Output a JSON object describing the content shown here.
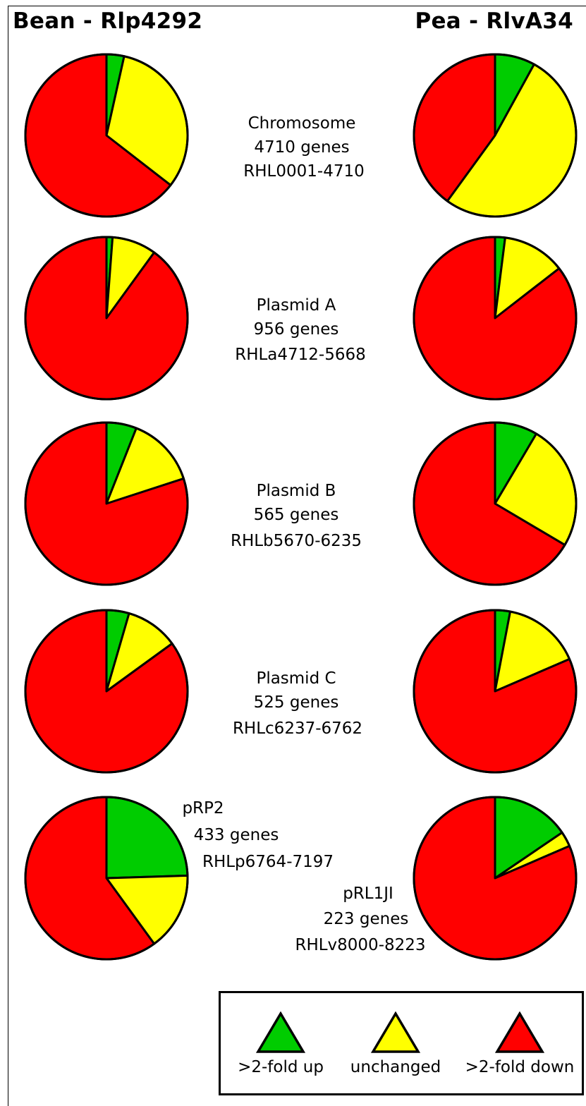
{
  "chart_data": {
    "type": "pie",
    "colors": {
      "up": "#00cc00",
      "unchanged": "#ffff00",
      "down": "#ff0000",
      "outline": "#000000"
    },
    "columns": [
      {
        "title": "Bean - Rlp4292"
      },
      {
        "title": "Pea - RlvA34"
      }
    ],
    "rows": [
      {
        "label": [
          "Chromosome",
          "4710 genes",
          "RHL0001-4710"
        ],
        "bean": {
          "up": 3.5,
          "unchanged": 32.0,
          "down": 64.5
        },
        "pea": {
          "up": 8.0,
          "unchanged": 52.0,
          "down": 40.0
        }
      },
      {
        "label": [
          "Plasmid A",
          "956 genes",
          "RHLa4712-5668"
        ],
        "bean": {
          "up": 1.2,
          "unchanged": 8.8,
          "down": 90.0
        },
        "pea": {
          "up": 2.0,
          "unchanged": 12.5,
          "down": 85.5
        }
      },
      {
        "label": [
          "Plasmid B",
          "565 genes",
          "RHLb5670-6235"
        ],
        "bean": {
          "up": 6.0,
          "unchanged": 14.0,
          "down": 80.0
        },
        "pea": {
          "up": 8.5,
          "unchanged": 25.0,
          "down": 66.5
        }
      },
      {
        "label": [
          "Plasmid C",
          "525 genes",
          "RHLc6237-6762"
        ],
        "bean": {
          "up": 4.5,
          "unchanged": 10.5,
          "down": 85.0
        },
        "pea": {
          "up": 3.0,
          "unchanged": 15.5,
          "down": 81.5
        }
      },
      {
        "label": [
          "pRP2",
          "433 genes",
          "RHLp6764-7197"
        ],
        "bean": {
          "up": 24.5,
          "unchanged": 15.5,
          "down": 60.0
        },
        "pea": {
          "up": 15.5,
          "unchanged": 3.0,
          "down": 81.5
        }
      },
      {
        "label": [
          "pRL1JI",
          "223 genes",
          "RHLv8000-8223"
        ]
      }
    ],
    "legend": [
      {
        "key": "up",
        "label": ">2-fold up"
      },
      {
        "key": "unchanged",
        "label": "unchanged"
      },
      {
        "key": "down",
        "label": ">2-fold down"
      }
    ]
  }
}
